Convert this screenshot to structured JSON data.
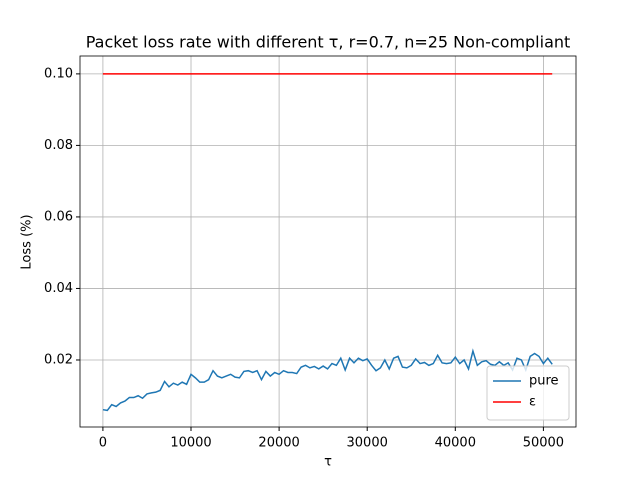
{
  "chart_data": {
    "type": "line",
    "title": "Packet loss rate with different τ, r=0.7, n=25 Non-compliant",
    "x_label": "τ",
    "y_label": "Loss (%)",
    "xlim": [
      -2600,
      53700
    ],
    "ylim": [
      0.00126,
      0.105
    ],
    "xticks": [
      0,
      10000,
      20000,
      30000,
      40000,
      50000
    ],
    "yticks": [
      0.02,
      0.04,
      0.06,
      0.08,
      {
        "value": 0.1,
        "label": "0.10"
      }
    ],
    "grid": true,
    "legend": "lower right",
    "series": [
      {
        "name": "pure",
        "color": "#1f77b4",
        "x": [
          0,
          500,
          1000,
          1500,
          2000,
          2500,
          3000,
          3500,
          4000,
          4500,
          5000,
          5500,
          6000,
          6500,
          7000,
          7500,
          8000,
          8500,
          9000,
          9500,
          10000,
          10500,
          11000,
          11500,
          12000,
          12500,
          13000,
          13500,
          14000,
          14500,
          15000,
          15500,
          16000,
          16500,
          17000,
          17500,
          18000,
          18500,
          19000,
          19500,
          20000,
          20500,
          21000,
          21500,
          22000,
          22500,
          23000,
          23500,
          24000,
          24500,
          25000,
          25500,
          26000,
          26500,
          27000,
          27500,
          28000,
          28500,
          29000,
          29500,
          30000,
          30500,
          31000,
          31500,
          32000,
          32500,
          33000,
          33500,
          34000,
          34500,
          35000,
          35500,
          36000,
          36500,
          37000,
          37500,
          38000,
          38500,
          39000,
          39500,
          40000,
          40500,
          41000,
          41500,
          42000,
          42500,
          43000,
          43500,
          44000,
          44500,
          45000,
          45500,
          46000,
          46500,
          47000,
          47500,
          48000,
          48500,
          49000,
          49500,
          50000,
          50500,
          51000
        ],
        "values": [
          0.0061,
          0.0059,
          0.0075,
          0.007,
          0.008,
          0.0085,
          0.0095,
          0.0095,
          0.01,
          0.0093,
          0.0105,
          0.0108,
          0.011,
          0.0115,
          0.014,
          0.0125,
          0.0135,
          0.013,
          0.0138,
          0.0132,
          0.016,
          0.015,
          0.0138,
          0.0138,
          0.0145,
          0.017,
          0.0155,
          0.015,
          0.0155,
          0.016,
          0.0152,
          0.015,
          0.0168,
          0.017,
          0.0165,
          0.017,
          0.0145,
          0.0168,
          0.0155,
          0.0165,
          0.016,
          0.017,
          0.0165,
          0.0165,
          0.0162,
          0.018,
          0.0185,
          0.0178,
          0.0182,
          0.0175,
          0.0183,
          0.0175,
          0.019,
          0.0185,
          0.0205,
          0.0172,
          0.0205,
          0.0192,
          0.0205,
          0.0198,
          0.0203,
          0.0185,
          0.017,
          0.0178,
          0.02,
          0.0175,
          0.0205,
          0.021,
          0.018,
          0.0178,
          0.0185,
          0.0203,
          0.019,
          0.0193,
          0.0185,
          0.019,
          0.0213,
          0.0192,
          0.019,
          0.0192,
          0.0208,
          0.019,
          0.02,
          0.0175,
          0.0225,
          0.0185,
          0.0195,
          0.0198,
          0.0188,
          0.0185,
          0.0195,
          0.0185,
          0.0192,
          0.0172,
          0.0205,
          0.02,
          0.0172,
          0.021,
          0.0218,
          0.021,
          0.019,
          0.0205,
          0.0188
        ]
      },
      {
        "name": "ε",
        "color": "#ff0000",
        "x": [
          0,
          51000
        ],
        "values": [
          0.1,
          0.1
        ]
      }
    ]
  }
}
